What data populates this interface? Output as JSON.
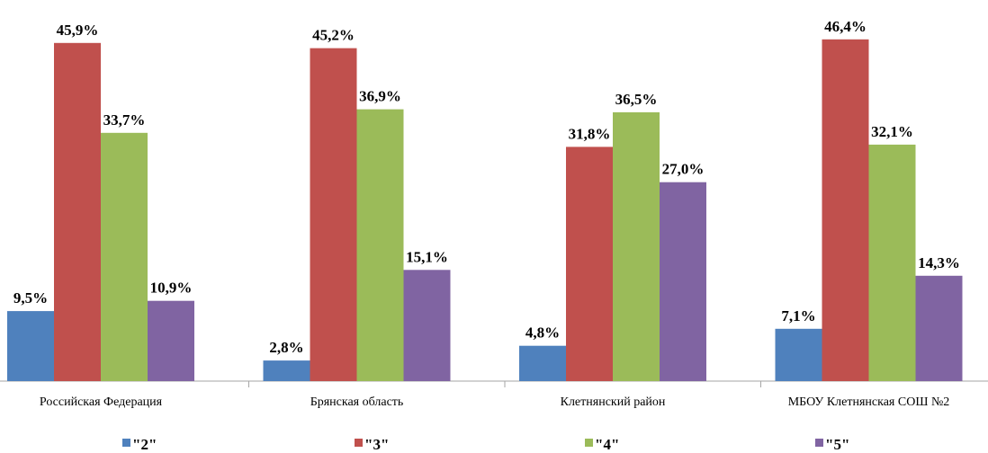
{
  "chart_data": {
    "type": "bar",
    "categories": [
      "Российская Федерация",
      "Брянская область",
      "Клетнянский район",
      "МБОУ Клетнянская СОШ №2"
    ],
    "series": [
      {
        "name": "\"2\"",
        "color": "#4f81bd",
        "values": [
          9.5,
          2.8,
          4.8,
          7.1
        ],
        "labels": [
          "9,5%",
          "2,8%",
          "4,8%",
          "7,1%"
        ]
      },
      {
        "name": "\"3\"",
        "color": "#c0504d",
        "values": [
          45.9,
          45.2,
          31.8,
          46.4
        ],
        "labels": [
          "45,9%",
          "45,2%",
          "31,8%",
          "46,4%"
        ]
      },
      {
        "name": "\"4\"",
        "color": "#9bbb59",
        "values": [
          33.7,
          36.9,
          36.5,
          32.1
        ],
        "labels": [
          "33,7%",
          "36,9%",
          "36,5%",
          "32,1%"
        ]
      },
      {
        "name": "\"5\"",
        "color": "#8064a2",
        "values": [
          10.9,
          15.1,
          27.0,
          14.3
        ],
        "labels": [
          "10,9%",
          "15,1%",
          "27,0%",
          "14,3%"
        ]
      }
    ],
    "ylim": [
      0,
      50
    ],
    "grid": false,
    "legend_position": "bottom"
  }
}
